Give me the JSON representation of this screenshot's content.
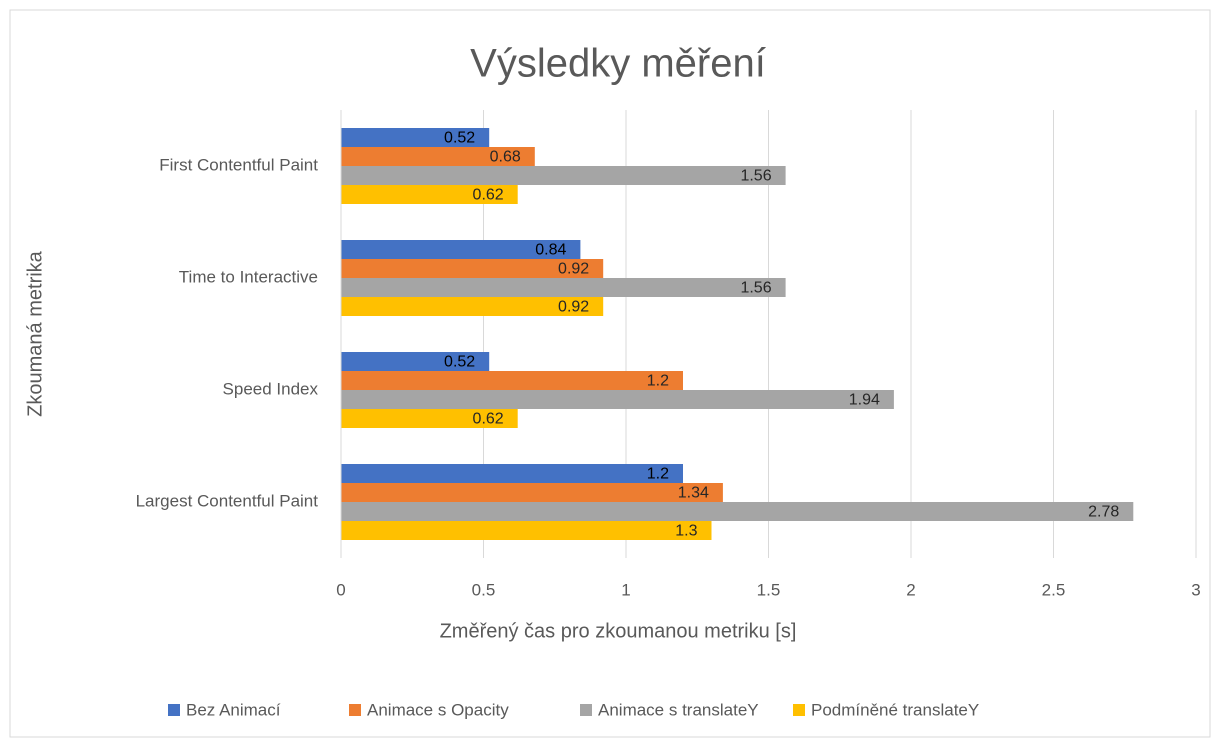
{
  "chart_data": {
    "type": "bar",
    "orientation": "horizontal",
    "title": "Výsledky měření",
    "x_label": "Změřený čas pro zkoumanou metriku [s]",
    "y_label": "Zkoumaná metrika",
    "categories": [
      "First Contentful Paint",
      "Time to Interactive",
      "Speed Index",
      "Largest Contentful Paint"
    ],
    "series": [
      {
        "name": "Bez Animací",
        "color": "#4472c4",
        "values": [
          0.52,
          0.84,
          0.52,
          1.2
        ]
      },
      {
        "name": "Animace s Opacity",
        "color": "#ed7d31",
        "values": [
          0.68,
          0.92,
          1.2,
          1.34
        ]
      },
      {
        "name": "Animace s translateY",
        "color": "#a5a5a5",
        "values": [
          1.56,
          1.56,
          1.94,
          2.78
        ]
      },
      {
        "name": "Podmíněné translateY",
        "color": "#ffc000",
        "values": [
          0.62,
          0.92,
          0.62,
          1.3
        ]
      }
    ],
    "xlim": [
      0,
      3
    ],
    "xticks": [
      0,
      0.5,
      1,
      1.5,
      2,
      2.5,
      3
    ],
    "grid": true,
    "legend": "bottom"
  }
}
